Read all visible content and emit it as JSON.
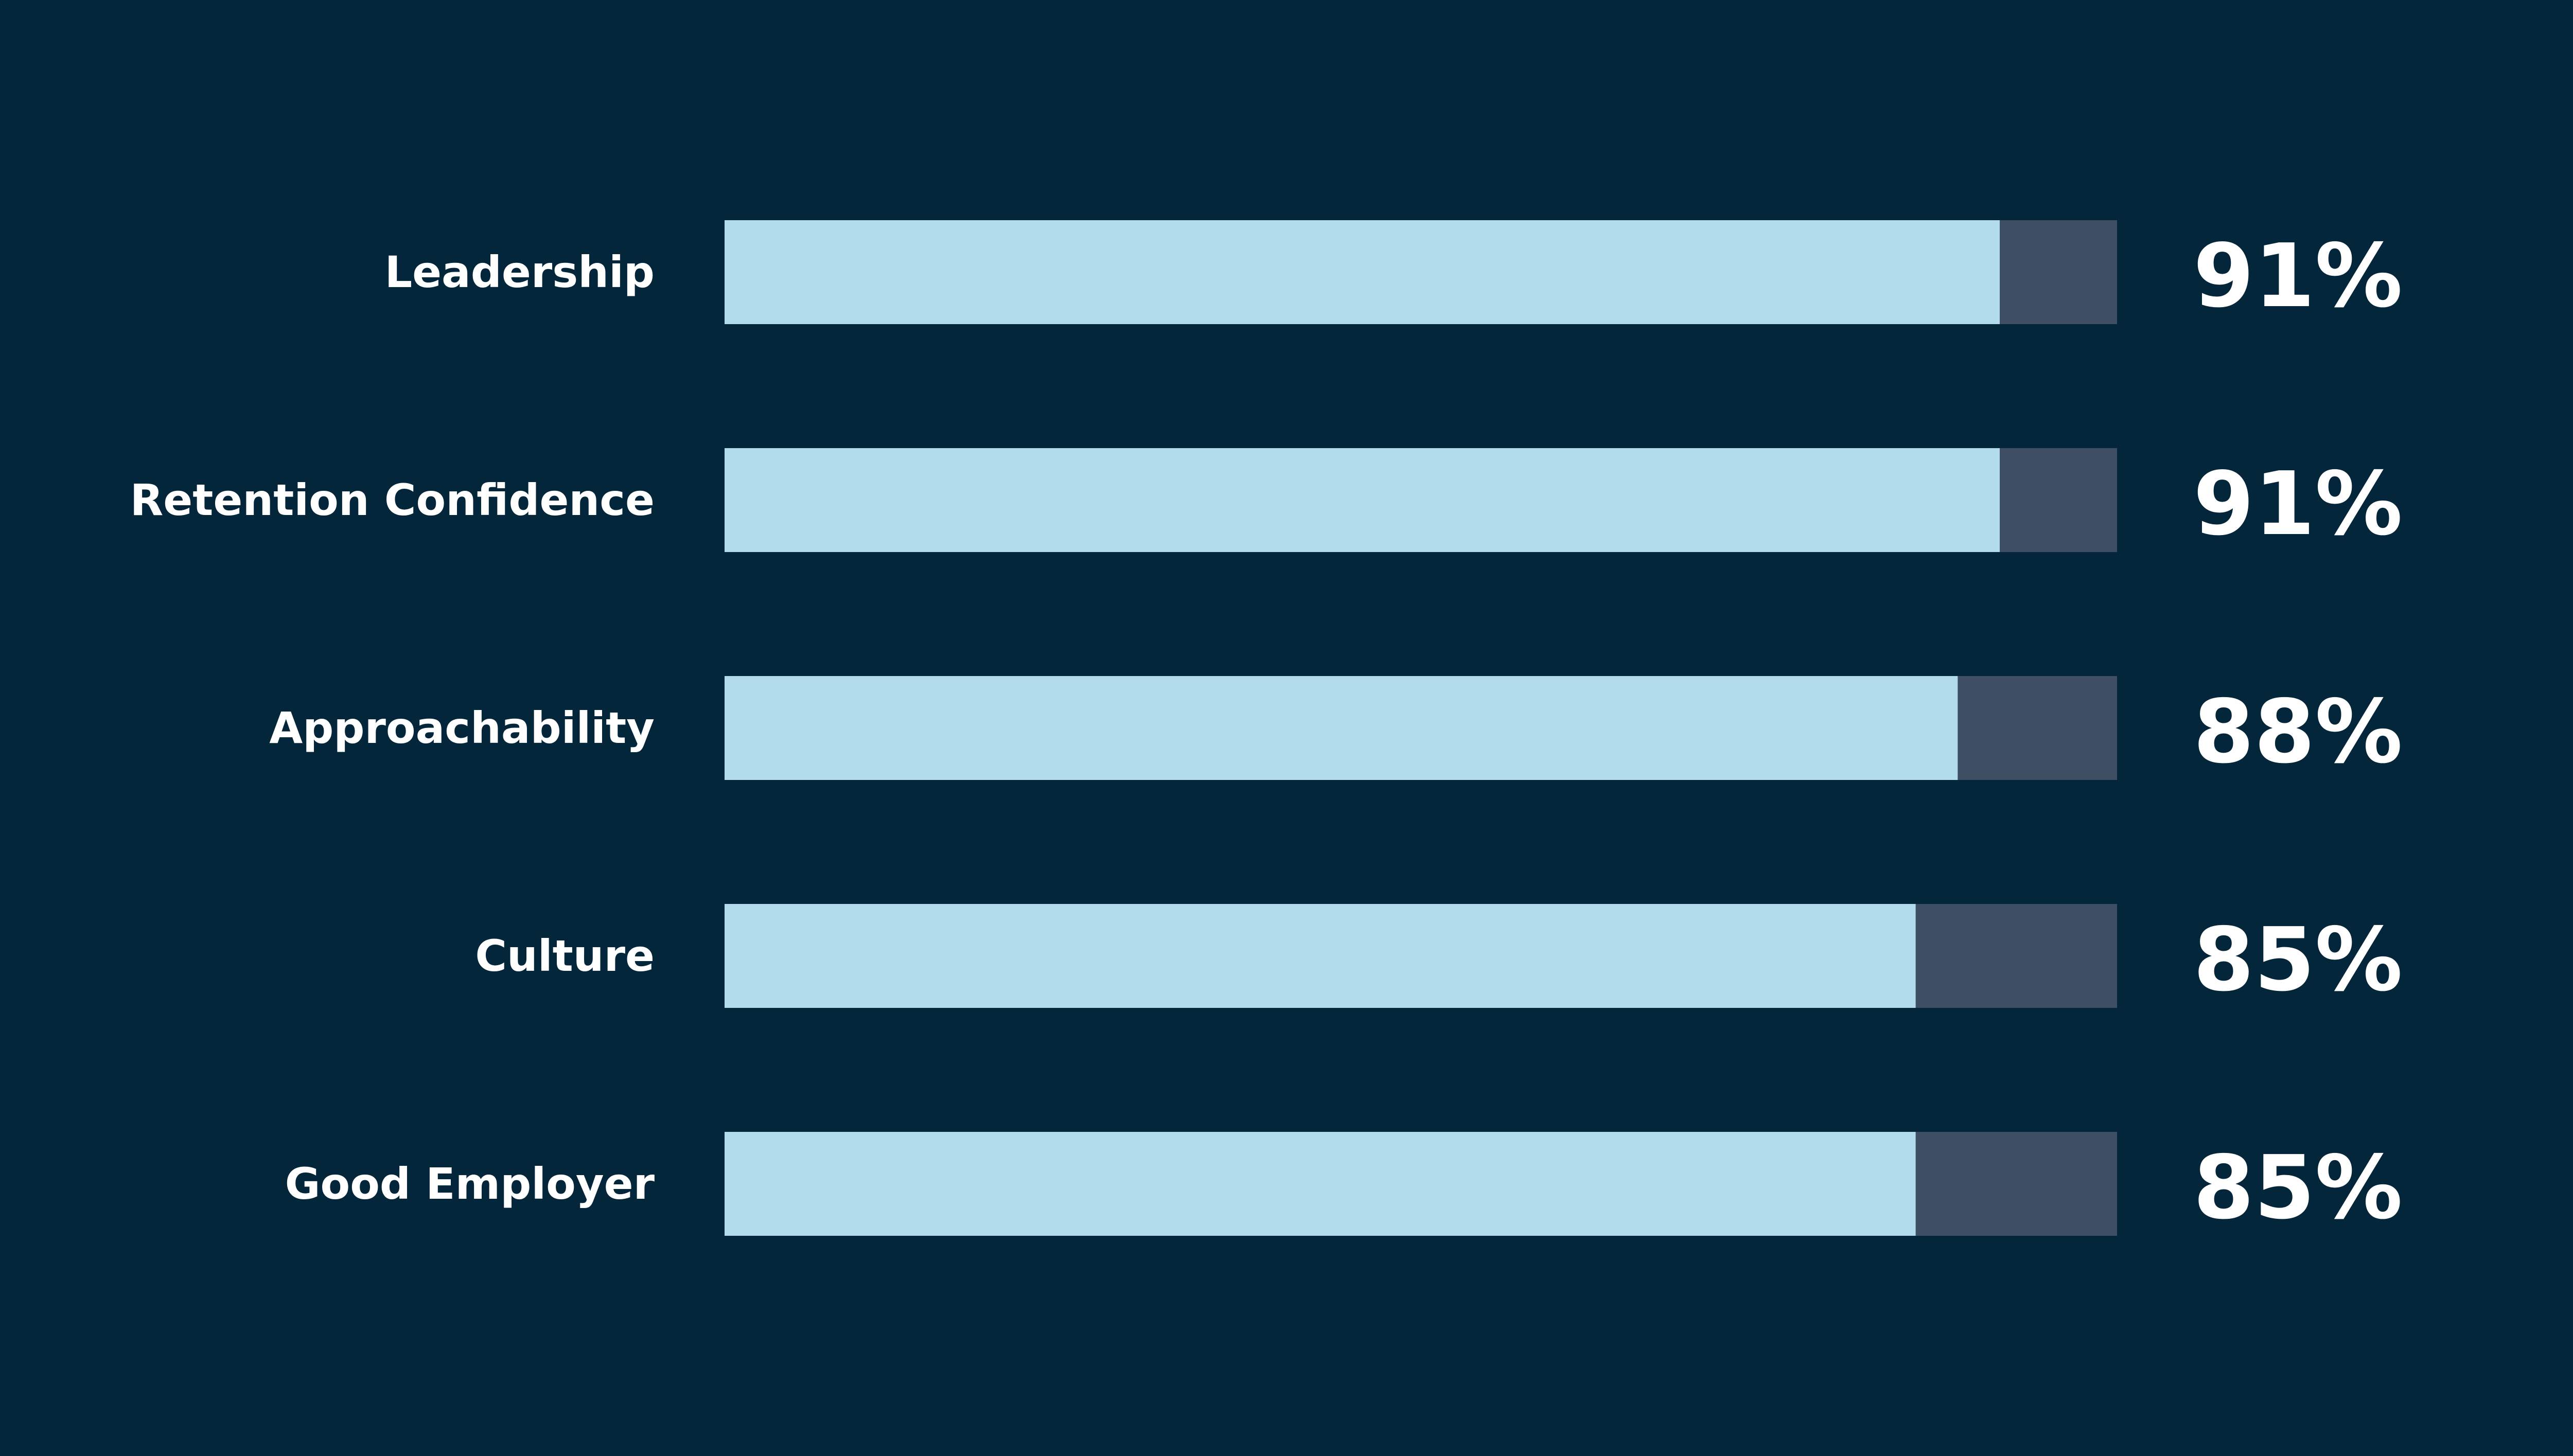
{
  "chart_data": {
    "type": "bar",
    "orientation": "horizontal",
    "categories": [
      "Leadership",
      "Retention Confidence",
      "Approachability",
      "Culture",
      "Good Employer"
    ],
    "values": [
      91,
      91,
      88,
      85,
      85
    ],
    "value_labels": [
      "91%",
      "91%",
      "88%",
      "85%",
      "85%"
    ],
    "xlim": [
      0,
      100
    ],
    "title": "",
    "xlabel": "",
    "ylabel": "",
    "grid": false,
    "legend": "none"
  },
  "colors": {
    "background": "#04263b",
    "bar_fill": "#b2dcec",
    "bar_track": "#3e4e63",
    "text": "#ffffff"
  }
}
